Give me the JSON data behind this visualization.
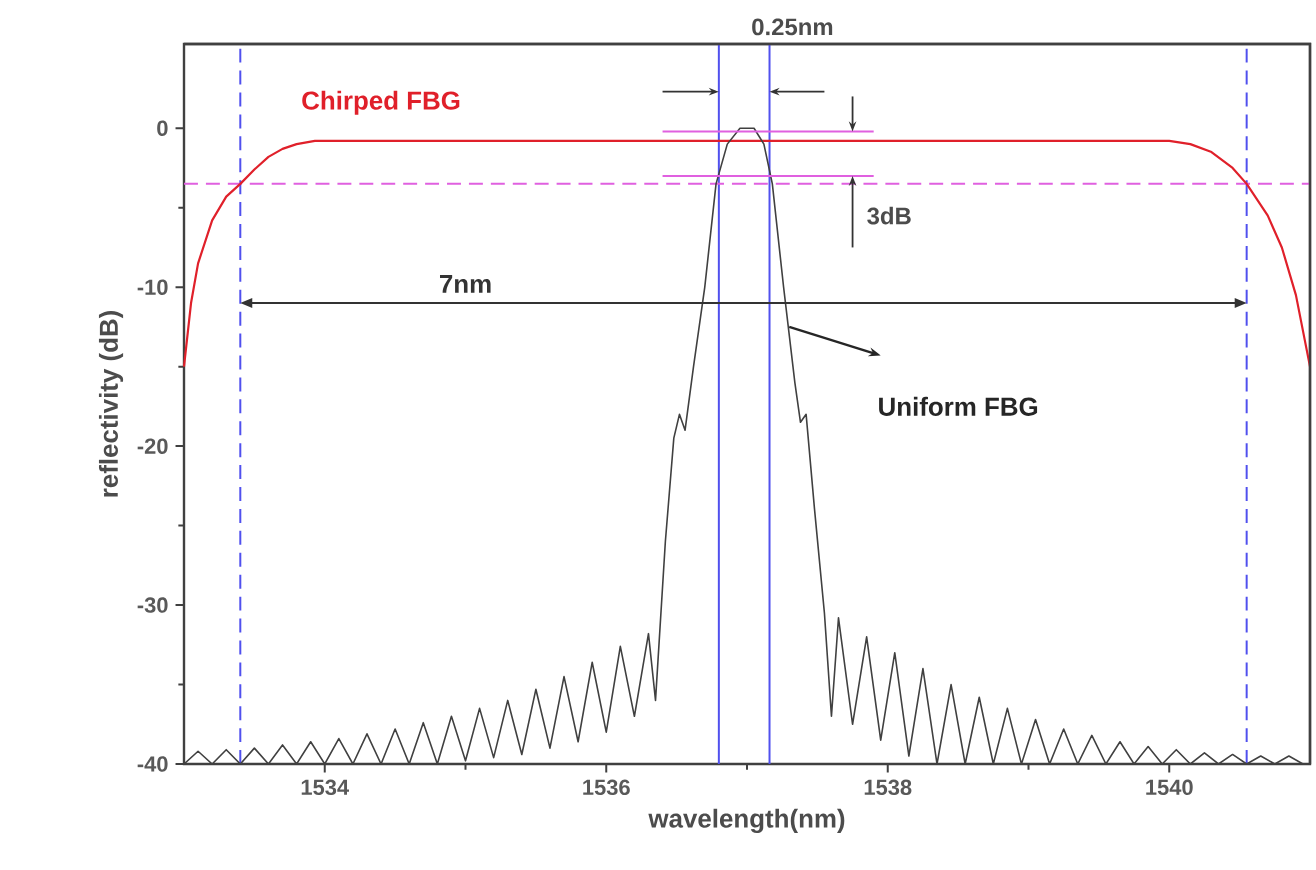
{
  "chart_data": {
    "type": "line",
    "xlabel": "wavelength(nm)",
    "ylabel": "reflectivity  (dB)",
    "xlim": [
      1533,
      1541
    ],
    "ylim": [
      -40,
      5.3
    ],
    "xticks": [
      1534,
      1536,
      1538,
      1540
    ],
    "yticks": [
      -40,
      -30,
      -20,
      -10,
      0
    ],
    "grid": false,
    "series": [
      {
        "name": "Chirped FBG",
        "color": "#e0202a",
        "x": [
          1533.0,
          1533.05,
          1533.1,
          1533.2,
          1533.3,
          1533.4,
          1533.5,
          1533.6,
          1533.7,
          1533.8,
          1533.93,
          1540.0,
          1540.15,
          1540.3,
          1540.45,
          1540.55,
          1540.7,
          1540.8,
          1540.9,
          1541.0
        ],
        "values": [
          -15,
          -11,
          -8.5,
          -5.8,
          -4.3,
          -3.5,
          -2.6,
          -1.8,
          -1.3,
          -1.0,
          -0.8,
          -0.8,
          -1.0,
          -1.5,
          -2.5,
          -3.5,
          -5.5,
          -7.5,
          -10.5,
          -15
        ]
      },
      {
        "name": "Uniform FBG",
        "color": "#404040",
        "x": [
          1533.0,
          1533.1,
          1533.2,
          1533.3,
          1533.4,
          1533.5,
          1533.6,
          1533.7,
          1533.8,
          1533.9,
          1534.0,
          1534.1,
          1534.2,
          1534.3,
          1534.4,
          1534.5,
          1534.6,
          1534.7,
          1534.8,
          1534.9,
          1535.0,
          1535.1,
          1535.2,
          1535.3,
          1535.4,
          1535.5,
          1535.6,
          1535.7,
          1535.8,
          1535.9,
          1536.0,
          1536.1,
          1536.2,
          1536.3,
          1536.35,
          1536.42,
          1536.48,
          1536.52,
          1536.56,
          1536.62,
          1536.7,
          1536.78,
          1536.86,
          1536.95,
          1537.05,
          1537.12,
          1537.18,
          1537.26,
          1537.34,
          1537.38,
          1537.42,
          1537.48,
          1537.55,
          1537.6,
          1537.65,
          1537.75,
          1537.85,
          1537.95,
          1538.05,
          1538.15,
          1538.25,
          1538.35,
          1538.45,
          1538.55,
          1538.65,
          1538.75,
          1538.85,
          1538.95,
          1539.05,
          1539.15,
          1539.25,
          1539.35,
          1539.45,
          1539.55,
          1539.65,
          1539.75,
          1539.85,
          1539.95,
          1540.05,
          1540.15,
          1540.25,
          1540.35,
          1540.45,
          1540.55,
          1540.65,
          1540.75,
          1540.85,
          1540.95
        ],
        "values": [
          -40,
          -39.2,
          -40,
          -39.1,
          -40,
          -39,
          -40,
          -38.8,
          -40,
          -38.6,
          -40,
          -38.4,
          -40,
          -38.1,
          -40,
          -37.8,
          -40,
          -37.4,
          -40,
          -37,
          -39.8,
          -36.5,
          -39.6,
          -36,
          -39.4,
          -35.3,
          -39,
          -34.5,
          -38.6,
          -33.6,
          -38,
          -32.6,
          -37,
          -31.8,
          -36,
          -26,
          -19.5,
          -18,
          -19,
          -15,
          -10,
          -3.5,
          -1,
          0,
          0,
          -1,
          -3.5,
          -10,
          -16,
          -18.5,
          -18,
          -24,
          -30.5,
          -37,
          -30.8,
          -37.5,
          -32,
          -38.5,
          -33,
          -39.5,
          -34,
          -40,
          -35,
          -40,
          -35.8,
          -40,
          -36.5,
          -40,
          -37.2,
          -40,
          -37.8,
          -40,
          -38.2,
          -40,
          -38.6,
          -40,
          -38.9,
          -40,
          -39.1,
          -40,
          -39.3,
          -40,
          -39.4,
          -40,
          -39.5,
          -40,
          -39.5,
          -40
        ]
      },
      {
        "color": "#e060e0",
        "x": [
          1536.4,
          1537.9
        ],
        "values": [
          -0.2,
          -0.2
        ]
      },
      {
        "color": "#e060e0",
        "x": [
          1536.4,
          1537.9
        ],
        "values": [
          -3.0,
          -3.0
        ]
      }
    ],
    "ref_lines": [
      {
        "axis": "x",
        "value": 1533.4,
        "color": "#5050ee",
        "line_style": "dashed"
      },
      {
        "axis": "x",
        "value": 1540.55,
        "color": "#5050ee",
        "line_style": "dashed"
      },
      {
        "axis": "x",
        "value": 1536.8,
        "color": "#5050ee",
        "line_style": "solid"
      },
      {
        "axis": "x",
        "value": 1537.16,
        "color": "#5050ee",
        "line_style": "solid"
      },
      {
        "axis": "y",
        "value": -3.5,
        "color": "#e060e0",
        "line_style": "dashed"
      }
    ],
    "annotations": [
      "0.25nm",
      {
        "text": "3dB",
        "x": 1537.75,
        "y": -3.0
      },
      "7nm"
    ]
  }
}
